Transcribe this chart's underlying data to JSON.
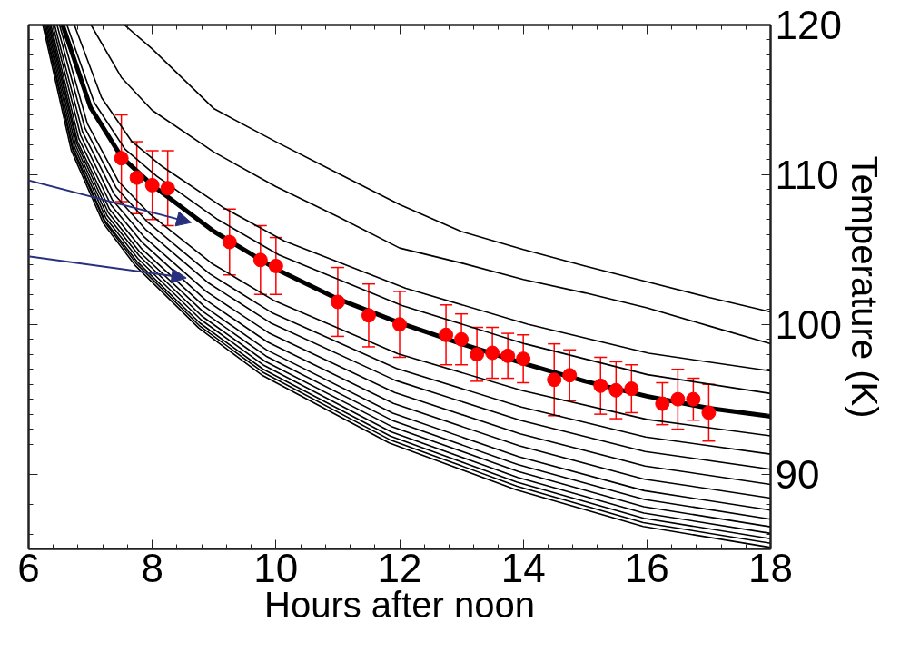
{
  "chart_data": {
    "type": "line",
    "xlabel": "Hours after noon",
    "ylabel": "Temperature (K)",
    "xlim": [
      6,
      18
    ],
    "ylim": [
      85,
      120
    ],
    "xticks": [
      6,
      8,
      10,
      12,
      14,
      16,
      18
    ],
    "yticks": [
      90,
      100,
      110,
      120
    ],
    "series": [
      {
        "color": "#000000",
        "x": [
          7.55,
          8,
          8.5,
          9,
          10,
          11,
          12,
          13,
          14,
          15,
          16,
          17,
          18
        ],
        "values": [
          120,
          118.4,
          116.4,
          114.4,
          112.2,
          110.1,
          108.0,
          106.2,
          105.0,
          103.9,
          102.85,
          101.8,
          100.83
        ]
      },
      {
        "color": "#000000",
        "x": [
          7.01,
          7.5,
          8,
          9,
          10,
          11,
          12,
          13,
          14,
          15,
          16,
          17,
          18
        ],
        "values": [
          120,
          116.5,
          114.3,
          111.5,
          109.2,
          107.2,
          105.1,
          104.1,
          103.0,
          102.1,
          101.1,
          99.9,
          98.71
        ]
      },
      {
        "color": "#000000",
        "x": [
          6.74,
          7.18,
          7.67,
          8.17,
          9.15,
          10.13,
          12.1,
          14.07,
          16.03,
          18
        ],
        "values": [
          120,
          115.15,
          112.21,
          110.52,
          107.8,
          105.58,
          102.41,
          100.01,
          98.07,
          96.89
        ]
      },
      {
        "color": "#000000",
        "x": [
          6.62,
          7.06,
          7.56,
          8.07,
          9.06,
          10.05,
          12.04,
          14.03,
          16.01,
          18
        ],
        "values": [
          120,
          114.83,
          111.7,
          109.91,
          107.0,
          104.64,
          101.26,
          98.7,
          96.64,
          95.38
        ]
      },
      {
        "color": "#000000",
        "x": [
          6.55,
          7,
          7.5,
          8,
          9,
          10,
          11,
          12,
          13,
          14,
          15,
          16,
          17,
          18
        ],
        "values": [
          120,
          114.5,
          111.2,
          109.3,
          106.2,
          103.7,
          101.7,
          100.1,
          98.7,
          97.4,
          96.2,
          95.2,
          94.4,
          93.86
        ]
      },
      {
        "color": "#000000",
        "x": [
          6.5,
          6.95,
          7.45,
          7.96,
          8.96,
          9.96,
          11.97,
          13.99,
          16,
          18
        ],
        "values": [
          120,
          113.41,
          109.57,
          107.37,
          104.08,
          101.61,
          98.04,
          95.57,
          93.65,
          92.55
        ]
      },
      {
        "color": "#000000",
        "x": [
          6.46,
          6.91,
          7.42,
          7.93,
          8.93,
          9.93,
          11.95,
          13.97,
          15.98,
          18
        ],
        "values": [
          120,
          113.12,
          109.11,
          106.81,
          103.37,
          100.79,
          97.06,
          94.48,
          92.48,
          91.33
        ]
      },
      {
        "color": "#000000",
        "x": [
          6.42,
          6.87,
          7.38,
          7.89,
          8.9,
          9.91,
          11.93,
          13.96,
          15.97,
          18
        ],
        "values": [
          120,
          112.88,
          108.72,
          106.35,
          102.79,
          100.11,
          96.26,
          93.58,
          91.51,
          90.32
        ]
      },
      {
        "color": "#000000",
        "x": [
          6.39,
          6.84,
          7.35,
          7.86,
          8.87,
          9.88,
          11.92,
          13.95,
          15.97,
          18
        ],
        "values": [
          120,
          112.63,
          108.34,
          105.88,
          102.2,
          99.44,
          95.45,
          92.69,
          90.54,
          89.31
        ]
      },
      {
        "color": "#000000",
        "x": [
          6.36,
          6.81,
          7.33,
          7.84,
          8.85,
          9.86,
          11.9,
          13.94,
          15.96,
          18
        ],
        "values": [
          120,
          112.42,
          107.99,
          105.46,
          101.67,
          98.83,
          94.72,
          91.88,
          89.66,
          88.4
        ]
      },
      {
        "color": "#000000",
        "x": [
          6.34,
          6.79,
          7.31,
          7.82,
          8.84,
          9.85,
          11.89,
          13.93,
          15.96,
          18
        ],
        "values": [
          120,
          112.22,
          107.68,
          105.09,
          101.2,
          98.29,
          94.07,
          91.16,
          88.89,
          87.59
        ]
      },
      {
        "color": "#000000",
        "x": [
          6.32,
          6.78,
          7.29,
          7.8,
          8.82,
          9.84,
          11.88,
          13.92,
          15.96,
          18
        ],
        "values": [
          120,
          112.08,
          107.46,
          104.82,
          100.85,
          97.88,
          93.59,
          90.62,
          88.31,
          86.99
        ]
      },
      {
        "color": "#000000",
        "x": [
          6.3,
          6.76,
          7.27,
          7.79,
          8.8,
          9.82,
          11.87,
          13.92,
          15.95,
          18
        ],
        "values": [
          120,
          111.96,
          107.26,
          104.58,
          100.56,
          97.54,
          93.18,
          90.17,
          87.82,
          86.48
        ]
      },
      {
        "color": "#000000",
        "x": [
          6.28,
          6.74,
          7.25,
          7.77,
          8.79,
          9.81,
          11.86,
          13.91,
          15.95,
          18
        ],
        "values": [
          120,
          111.85,
          107.1,
          104.38,
          100.3,
          97.25,
          92.83,
          89.78,
          87.4,
          86.04
        ]
      },
      {
        "color": "#000000",
        "x": [
          6.26,
          6.72,
          7.23,
          7.75,
          8.77,
          9.79,
          11.85,
          13.9,
          15.95,
          18
        ],
        "values": [
          120,
          111.76,
          106.96,
          104.21,
          100.09,
          97.01,
          92.54,
          89.46,
          87.05,
          85.68
        ]
      },
      {
        "color": "#000000",
        "x": [
          6.25,
          6.71,
          7.23,
          7.74,
          8.76,
          9.79,
          11.84,
          13.9,
          15.94,
          18
        ],
        "values": [
          120,
          111.69,
          106.84,
          104.07,
          99.92,
          96.8,
          92.3,
          89.19,
          86.76,
          85.38
        ]
      },
      {
        "color": "#000000",
        "x": [
          6.23,
          6.69,
          7.21,
          7.72,
          8.75,
          9.77,
          11.83,
          13.89,
          15.94,
          18
        ],
        "values": [
          120,
          111.62,
          106.74,
          103.95,
          99.76,
          96.62,
          92.08,
          88.94,
          86.5,
          85.1
        ]
      },
      {
        "type": "scatter",
        "color": "#ff0000",
        "marker": "circle",
        "x": [
          7.5,
          7.75,
          8,
          8.25,
          9.25,
          9.75,
          10,
          11,
          11.5,
          12,
          12.75,
          13,
          13.25,
          13.5,
          13.75,
          14,
          14.5,
          14.75,
          15.25,
          15.5,
          15.75,
          16.25,
          16.5,
          16.75,
          17
        ],
        "values": [
          111.1,
          109.8,
          109.3,
          109.1,
          105.5,
          104.3,
          103.9,
          101.5,
          100.6,
          100.0,
          99.3,
          99.0,
          98.0,
          98.1,
          97.9,
          97.7,
          96.3,
          96.6,
          95.9,
          95.6,
          95.7,
          94.7,
          95.0,
          95.0,
          94.1
        ],
        "errors": [
          2.9,
          2.4,
          2.3,
          2.5,
          2.2,
          2.3,
          1.9,
          2.3,
          2.1,
          2.2,
          2.0,
          1.7,
          1.8,
          1.7,
          1.5,
          1.6,
          2.4,
          1.7,
          1.9,
          1.9,
          1.6,
          1.4,
          2.0,
          1.4,
          1.9
        ]
      }
    ]
  }
}
